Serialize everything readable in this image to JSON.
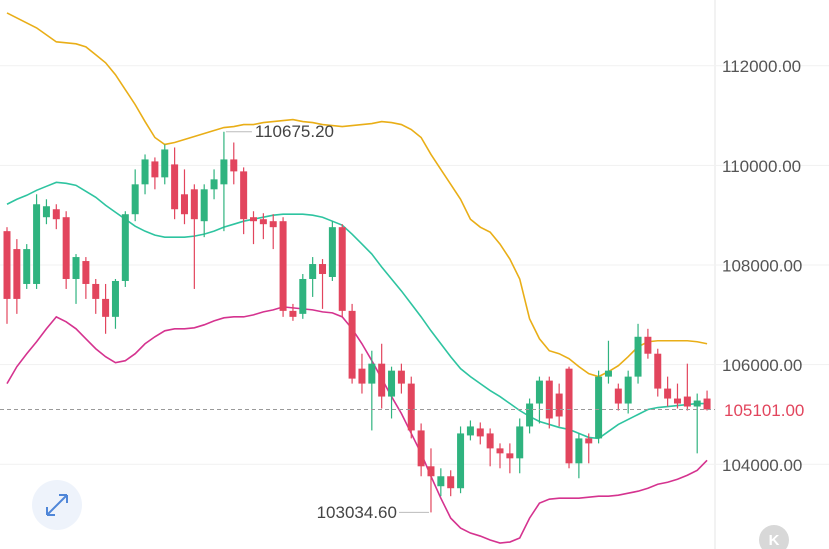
{
  "chart_data": {
    "type": "candlestick",
    "ylim": [
      102300,
      113320
    ],
    "yticks": [
      {
        "value": 104000,
        "label": "104000.00"
      },
      {
        "value": 106000,
        "label": "106000.00"
      },
      {
        "value": 108000,
        "label": "108000.00"
      },
      {
        "value": 110000,
        "label": "110000.00"
      },
      {
        "value": 112000,
        "label": "112000.00"
      }
    ],
    "grid": true,
    "up_color": "#2fb37f",
    "down_color": "#e2455d",
    "open": [
      108680,
      108320,
      107620,
      107620,
      108960,
      109120,
      108960,
      107720,
      108080,
      107620,
      107320,
      106960,
      107680,
      109020,
      109620,
      110080,
      109760,
      110020,
      109420,
      109520,
      108880,
      109520,
      109620,
      110120,
      109880,
      108960,
      108920,
      108880,
      108880,
      107080,
      107020,
      107720,
      108020,
      107760,
      108760,
      107080,
      105920,
      105620,
      106020,
      105360,
      105880,
      105620,
      104680,
      103960,
      103560,
      103760,
      103520,
      104580,
      104720,
      104620,
      104320,
      104220,
      104120,
      104760,
      105220,
      105680,
      105420,
      105920,
      104020,
      104520,
      104520,
      105760,
      105520,
      105220,
      105760,
      106560,
      106220,
      105520,
      105320,
      105360,
      105160,
      105320
    ],
    "high": [
      108760,
      108520,
      108420,
      109420,
      109320,
      109220,
      109080,
      108220,
      108160,
      107720,
      107620,
      107720,
      109080,
      109920,
      110220,
      110160,
      110420,
      110360,
      109920,
      109620,
      109620,
      109920,
      110675.2,
      110460,
      109960,
      109080,
      109040,
      109020,
      108960,
      107220,
      107820,
      108160,
      108120,
      108880,
      108820,
      107220,
      106220,
      106280,
      106420,
      105960,
      106020,
      105760,
      104820,
      104320,
      103920,
      103880,
      104760,
      104880,
      104840,
      104720,
      104420,
      104420,
      104920,
      105320,
      105760,
      105760,
      105620,
      105960,
      104620,
      104620,
      105880,
      106480,
      105620,
      105880,
      106820,
      106720,
      106320,
      105760,
      105620,
      106020,
      105420,
      105480
    ],
    "low": [
      106820,
      107020,
      107520,
      107520,
      108820,
      108720,
      107520,
      107220,
      107320,
      107020,
      106620,
      106720,
      107560,
      108880,
      109420,
      109520,
      109620,
      108920,
      108820,
      107520,
      108560,
      109320,
      108680,
      109620,
      108620,
      108420,
      108520,
      108320,
      106960,
      106880,
      106920,
      107360,
      107120,
      107680,
      106960,
      105620,
      105420,
      104680,
      105120,
      104920,
      105420,
      104520,
      103760,
      103034.6,
      103360,
      103360,
      103420,
      104480,
      104400,
      103960,
      103920,
      103820,
      103820,
      104620,
      104820,
      104720,
      104760,
      103920,
      103720,
      104020,
      104420,
      105620,
      105080,
      105020,
      105620,
      106120,
      105360,
      105160,
      105120,
      105080,
      104220,
      105080
    ],
    "close": [
      107320,
      107320,
      108320,
      109220,
      109180,
      108920,
      107720,
      108160,
      107620,
      107320,
      106960,
      107680,
      109020,
      109620,
      110120,
      109760,
      110320,
      109120,
      109020,
      108920,
      109520,
      109720,
      110120,
      109880,
      108920,
      108880,
      108820,
      108760,
      107080,
      106960,
      107720,
      108020,
      107820,
      108760,
      107080,
      105720,
      105620,
      106020,
      105360,
      105880,
      105620,
      104680,
      103960,
      103760,
      103760,
      103520,
      104620,
      104760,
      104560,
      104320,
      104220,
      104120,
      104760,
      105220,
      105680,
      104920,
      104960,
      104020,
      104520,
      104420,
      105760,
      105880,
      105220,
      105760,
      106560,
      106220,
      105520,
      105320,
      105220,
      105160,
      105280,
      105101
    ],
    "bands": [
      {
        "color": "#e9ae17",
        "values": [
          113060,
          112960,
          112860,
          112760,
          112620,
          112480,
          112460,
          112440,
          112380,
          112220,
          112060,
          111820,
          111520,
          111220,
          110880,
          110560,
          110420,
          110460,
          110520,
          110580,
          110640,
          110700,
          110760,
          110780,
          110820,
          110820,
          110860,
          110880,
          110900,
          110920,
          110880,
          110860,
          110820,
          110800,
          110780,
          110800,
          110820,
          110840,
          110880,
          110860,
          110820,
          110720,
          110560,
          110220,
          109920,
          109620,
          109320,
          108920,
          108760,
          108660,
          108420,
          108120,
          107720,
          106920,
          106520,
          106280,
          106220,
          106120,
          105960,
          105820,
          105760,
          105860,
          105980,
          106160,
          106360,
          106460,
          106480,
          106480,
          106480,
          106480,
          106460,
          106420
        ]
      },
      {
        "color": "#2ec4a0",
        "values": [
          109220,
          109320,
          109400,
          109500,
          109580,
          109660,
          109640,
          109600,
          109480,
          109360,
          109200,
          109060,
          108920,
          108780,
          108680,
          108600,
          108560,
          108560,
          108560,
          108580,
          108620,
          108680,
          108760,
          108820,
          108880,
          108920,
          108960,
          109000,
          109020,
          109020,
          109020,
          109000,
          108960,
          108880,
          108800,
          108620,
          108420,
          108220,
          107960,
          107720,
          107480,
          107220,
          106960,
          106680,
          106420,
          106160,
          105920,
          105760,
          105620,
          105480,
          105360,
          105220,
          105080,
          104960,
          104860,
          104800,
          104740,
          104700,
          104620,
          104540,
          104520,
          104660,
          104800,
          104900,
          105000,
          105100,
          105140,
          105160,
          105180,
          105200,
          105220,
          105220
        ]
      },
      {
        "color": "#d5338f",
        "values": [
          105620,
          105960,
          106220,
          106460,
          106720,
          106960,
          106860,
          106720,
          106520,
          106320,
          106160,
          106040,
          106080,
          106220,
          106420,
          106560,
          106680,
          106720,
          106720,
          106740,
          106800,
          106880,
          106940,
          106960,
          106960,
          107000,
          107060,
          107100,
          107160,
          107140,
          107120,
          107100,
          107060,
          107040,
          106960,
          106720,
          106420,
          106080,
          105720,
          105360,
          105020,
          104620,
          104220,
          103760,
          103320,
          102920,
          102720,
          102620,
          102560,
          102480,
          102420,
          102440,
          102520,
          102920,
          103220,
          103300,
          103320,
          103320,
          103320,
          103340,
          103360,
          103360,
          103380,
          103420,
          103460,
          103520,
          103600,
          103640,
          103700,
          103780,
          103880,
          104080
        ]
      }
    ],
    "annotations": [
      {
        "value": 110675.2,
        "label": "110675.20"
      },
      {
        "value": 103034.6,
        "label": "103034.60"
      }
    ],
    "last_price": {
      "value": 105101,
      "label": "105101.00",
      "color": "#e2455d"
    },
    "watermark": "K"
  }
}
